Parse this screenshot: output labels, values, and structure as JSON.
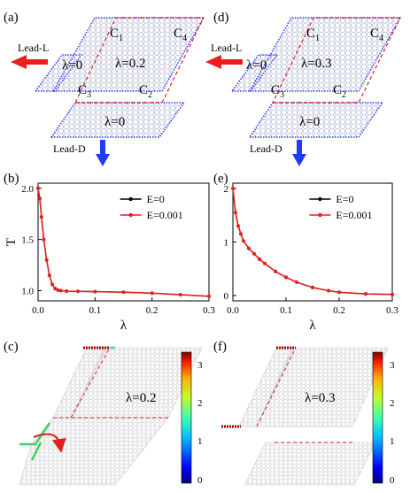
{
  "panel_labels": [
    "(a)",
    "(b)",
    "(c)",
    "(d)",
    "(e)",
    "(f)"
  ],
  "schematic_a": {
    "lead_left": "Lead-L",
    "lead_down": "Lead-D",
    "c1": "C",
    "c1_sub": "1",
    "c2": "C",
    "c2_sub": "2",
    "c3": "C",
    "c3_sub": "3",
    "c4": "C",
    "c4_sub": "4",
    "lambda_left": "λ=0",
    "lambda_center": "λ=0.2",
    "lambda_bottom": "λ=0"
  },
  "schematic_d": {
    "lead_left": "Lead-L",
    "lead_down": "Lead-D",
    "c1": "C",
    "c1_sub": "1",
    "c2": "C",
    "c2_sub": "2",
    "c3": "C",
    "c3_sub": "3",
    "c4": "C",
    "c4_sub": "4",
    "lambda_left": "λ=0",
    "lambda_center": "λ=0.3",
    "lambda_bottom": "λ=0"
  },
  "map_c": {
    "label": "λ=0.2",
    "colorbar_ticks": [
      "3",
      "2",
      "1",
      "0"
    ]
  },
  "map_f": {
    "label": "λ=0.3",
    "colorbar_ticks": [
      "3",
      "2",
      "1",
      "0"
    ]
  },
  "chart_data": [
    {
      "type": "line",
      "panel": "(b)",
      "xlabel": "λ",
      "ylabel": "T",
      "xlim": [
        0.0,
        0.3
      ],
      "ylim": [
        0.9,
        2.05
      ],
      "xticks": [
        "0.0",
        "0.1",
        "0.2",
        "0.3"
      ],
      "yticks": [
        "1.0",
        "1.5",
        "2.0"
      ],
      "legend_position": "top-right",
      "series": [
        {
          "name": "E=0",
          "color": "#000000",
          "x": [
            0,
            0.003,
            0.006,
            0.01,
            0.015,
            0.02,
            0.025,
            0.03,
            0.035,
            0.04,
            0.05,
            0.07,
            0.1,
            0.15,
            0.2,
            0.25,
            0.3
          ],
          "y": [
            2.0,
            1.9,
            1.72,
            1.5,
            1.3,
            1.15,
            1.06,
            1.02,
            1.005,
            1.0,
            0.995,
            0.993,
            0.99,
            0.985,
            0.975,
            0.96,
            0.945
          ]
        },
        {
          "name": "E=0.001",
          "color": "#e02020",
          "x": [
            0,
            0.003,
            0.006,
            0.01,
            0.015,
            0.02,
            0.025,
            0.03,
            0.035,
            0.04,
            0.05,
            0.07,
            0.1,
            0.15,
            0.2,
            0.25,
            0.3
          ],
          "y": [
            2.0,
            1.9,
            1.72,
            1.5,
            1.3,
            1.15,
            1.06,
            1.02,
            1.005,
            1.0,
            0.995,
            0.993,
            0.99,
            0.985,
            0.975,
            0.96,
            0.945
          ]
        }
      ]
    },
    {
      "type": "line",
      "panel": "(e)",
      "xlabel": "λ",
      "ylabel": "",
      "xlim": [
        0.0,
        0.3
      ],
      "ylim": [
        -0.1,
        2.1
      ],
      "xticks": [
        "0.0",
        "0.1",
        "0.2",
        "0.3"
      ],
      "yticks": [
        "0",
        "1",
        "2"
      ],
      "legend_position": "top-right",
      "series": [
        {
          "name": "E=0",
          "color": "#000000",
          "x": [
            0,
            0.005,
            0.01,
            0.015,
            0.02,
            0.03,
            0.04,
            0.05,
            0.06,
            0.08,
            0.1,
            0.12,
            0.15,
            0.18,
            0.2,
            0.25,
            0.3
          ],
          "y": [
            2.0,
            1.55,
            1.3,
            1.15,
            1.02,
            0.88,
            0.78,
            0.68,
            0.6,
            0.45,
            0.34,
            0.25,
            0.15,
            0.09,
            0.06,
            0.03,
            0.02
          ]
        },
        {
          "name": "E=0.001",
          "color": "#e02020",
          "x": [
            0,
            0.005,
            0.01,
            0.015,
            0.02,
            0.03,
            0.04,
            0.05,
            0.06,
            0.08,
            0.1,
            0.12,
            0.15,
            0.18,
            0.2,
            0.25,
            0.3
          ],
          "y": [
            2.0,
            1.55,
            1.3,
            1.15,
            1.02,
            0.88,
            0.78,
            0.68,
            0.6,
            0.45,
            0.34,
            0.25,
            0.15,
            0.09,
            0.06,
            0.03,
            0.02
          ]
        }
      ]
    }
  ]
}
